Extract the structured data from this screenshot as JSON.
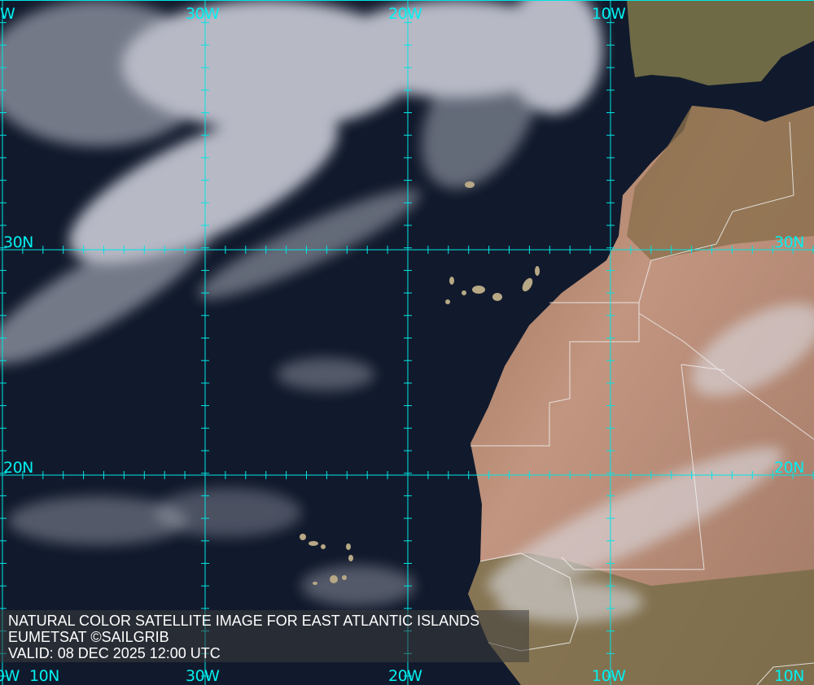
{
  "caption": {
    "title": "NATURAL COLOR SATELLITE IMAGE FOR EAST ATLANTIC ISLANDS",
    "source": "EUMETSAT ©SAILGRIB",
    "valid": "VALID:  08 DEC 2025 12:00 UTC"
  },
  "grid": {
    "color": "#00e5e5",
    "top_labels": [
      "W",
      "30W",
      "20W",
      "10W"
    ],
    "bottom_labels": [
      "0W",
      "30W",
      "20W",
      "10W"
    ],
    "left_labels": [
      "30N",
      "20N",
      "10N"
    ],
    "right_labels": [
      "30N",
      "20N",
      "10N"
    ]
  },
  "colors": {
    "ocean": "#111a2c",
    "desert": "#b98a74",
    "vegetation": "#6f6e48",
    "cloud": "#e8e8ee",
    "border": "#f0f0f0"
  }
}
